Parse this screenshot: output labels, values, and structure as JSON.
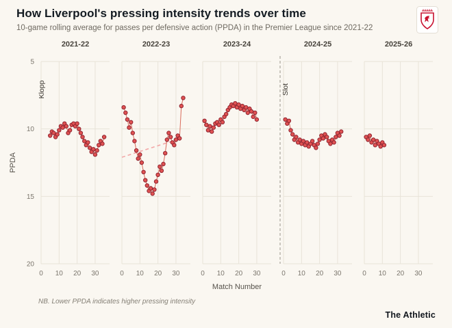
{
  "header": {
    "title": "How Liverpool's pressing intensity trends over time",
    "subtitle": "10-game rolling average for passes per defensive action (PPDA) in the Premier League since 2021-22",
    "crest_icon": "liverpool-crest-icon"
  },
  "chart_data": {
    "type": "scatter",
    "title": "How Liverpool's pressing intensity trends over time",
    "xlabel": "Match Number",
    "ylabel": "PPDA",
    "x_ticks": [
      0,
      10,
      20,
      30
    ],
    "y_ticks": [
      5,
      10,
      15,
      20
    ],
    "x_domain": [
      0,
      38
    ],
    "y_domain": [
      5,
      20
    ],
    "y_inverted": true,
    "grid": true,
    "colors": {
      "background": "#faf7f1",
      "grid": "#e8e3d8",
      "point_fill": "#e05252",
      "point_stroke": "#8f2430",
      "line": "#d96a5a",
      "trend": "#f2a8a8",
      "divider": "#9a958c",
      "tick_text": "#7a756c",
      "season_text": "#46423b"
    },
    "panels": [
      {
        "season": "2021-22",
        "annotation": "Klopp",
        "points": [
          [
            5,
            10.5
          ],
          [
            6,
            10.2
          ],
          [
            7,
            10.3
          ],
          [
            8,
            10.6
          ],
          [
            9,
            10.4
          ],
          [
            10,
            10.1
          ],
          [
            11,
            9.8
          ],
          [
            12,
            9.9
          ],
          [
            13,
            9.6
          ],
          [
            14,
            9.8
          ],
          [
            15,
            10.3
          ],
          [
            16,
            10.1
          ],
          [
            17,
            9.7
          ],
          [
            18,
            9.6
          ],
          [
            19,
            9.8
          ],
          [
            20,
            9.6
          ],
          [
            21,
            10.0
          ],
          [
            22,
            10.3
          ],
          [
            23,
            10.6
          ],
          [
            24,
            10.9
          ],
          [
            25,
            11.2
          ],
          [
            26,
            11.0
          ],
          [
            27,
            11.4
          ],
          [
            28,
            11.7
          ],
          [
            29,
            11.5
          ],
          [
            30,
            11.9
          ],
          [
            31,
            11.6
          ],
          [
            32,
            11.2
          ],
          [
            33,
            10.9
          ],
          [
            34,
            11.1
          ],
          [
            35,
            10.6
          ]
        ]
      },
      {
        "season": "2022-23",
        "trend": [
          [
            0,
            12.1
          ],
          [
            28,
            10.9
          ]
        ],
        "points": [
          [
            1,
            8.4
          ],
          [
            2,
            8.8
          ],
          [
            3,
            9.3
          ],
          [
            4,
            9.9
          ],
          [
            5,
            9.5
          ],
          [
            6,
            10.3
          ],
          [
            7,
            10.9
          ],
          [
            8,
            11.6
          ],
          [
            9,
            12.2
          ],
          [
            10,
            11.9
          ],
          [
            11,
            12.5
          ],
          [
            12,
            13.2
          ],
          [
            13,
            13.8
          ],
          [
            14,
            14.2
          ],
          [
            15,
            14.6
          ],
          [
            16,
            14.4
          ],
          [
            17,
            14.8
          ],
          [
            18,
            14.5
          ],
          [
            19,
            13.9
          ],
          [
            20,
            13.4
          ],
          [
            21,
            12.8
          ],
          [
            22,
            13.1
          ],
          [
            23,
            12.6
          ],
          [
            24,
            11.8
          ],
          [
            25,
            10.8
          ],
          [
            26,
            10.3
          ],
          [
            27,
            10.6
          ],
          [
            28,
            11.0
          ],
          [
            29,
            11.2
          ],
          [
            30,
            10.8
          ],
          [
            31,
            10.5
          ],
          [
            32,
            10.7
          ],
          [
            33,
            8.3
          ],
          [
            34,
            7.7
          ]
        ]
      },
      {
        "season": "2023-24",
        "points": [
          [
            1,
            9.4
          ],
          [
            2,
            9.7
          ],
          [
            3,
            10.1
          ],
          [
            4,
            9.8
          ],
          [
            5,
            10.2
          ],
          [
            6,
            9.9
          ],
          [
            7,
            9.6
          ],
          [
            8,
            9.5
          ],
          [
            9,
            9.7
          ],
          [
            10,
            9.3
          ],
          [
            11,
            9.5
          ],
          [
            12,
            9.1
          ],
          [
            13,
            8.9
          ],
          [
            14,
            8.6
          ],
          [
            15,
            8.4
          ],
          [
            16,
            8.2
          ],
          [
            17,
            8.3
          ],
          [
            18,
            8.1
          ],
          [
            19,
            8.4
          ],
          [
            20,
            8.2
          ],
          [
            21,
            8.5
          ],
          [
            22,
            8.3
          ],
          [
            23,
            8.6
          ],
          [
            24,
            8.4
          ],
          [
            25,
            8.8
          ],
          [
            26,
            8.5
          ],
          [
            27,
            8.7
          ],
          [
            28,
            9.1
          ],
          [
            29,
            8.8
          ],
          [
            30,
            9.3
          ]
        ]
      },
      {
        "season": "2024-25",
        "annotation": "Slot",
        "divider": true,
        "points": [
          [
            1,
            9.3
          ],
          [
            2,
            9.6
          ],
          [
            3,
            9.4
          ],
          [
            4,
            10.1
          ],
          [
            5,
            10.4
          ],
          [
            6,
            10.8
          ],
          [
            7,
            10.6
          ],
          [
            8,
            11.0
          ],
          [
            9,
            10.8
          ],
          [
            10,
            11.1
          ],
          [
            11,
            10.9
          ],
          [
            12,
            11.2
          ],
          [
            13,
            11.0
          ],
          [
            14,
            11.3
          ],
          [
            15,
            11.1
          ],
          [
            16,
            10.9
          ],
          [
            17,
            11.2
          ],
          [
            18,
            11.4
          ],
          [
            19,
            11.1
          ],
          [
            20,
            10.8
          ],
          [
            21,
            10.5
          ],
          [
            22,
            10.7
          ],
          [
            23,
            10.4
          ],
          [
            24,
            10.6
          ],
          [
            25,
            10.9
          ],
          [
            26,
            11.1
          ],
          [
            27,
            10.8
          ],
          [
            28,
            11.0
          ],
          [
            29,
            10.6
          ],
          [
            30,
            10.3
          ],
          [
            31,
            10.5
          ],
          [
            32,
            10.2
          ]
        ]
      },
      {
        "season": "2025-26",
        "points": [
          [
            1,
            10.6
          ],
          [
            2,
            10.8
          ],
          [
            3,
            10.5
          ],
          [
            4,
            11.0
          ],
          [
            5,
            10.8
          ],
          [
            6,
            11.2
          ],
          [
            7,
            10.9
          ],
          [
            8,
            11.1
          ],
          [
            9,
            11.3
          ],
          [
            10,
            11.0
          ],
          [
            11,
            11.2
          ]
        ]
      }
    ]
  },
  "footer": {
    "note": "NB. Lower PPDA indicates higher pressing intensity",
    "brand": "The Athletic"
  }
}
